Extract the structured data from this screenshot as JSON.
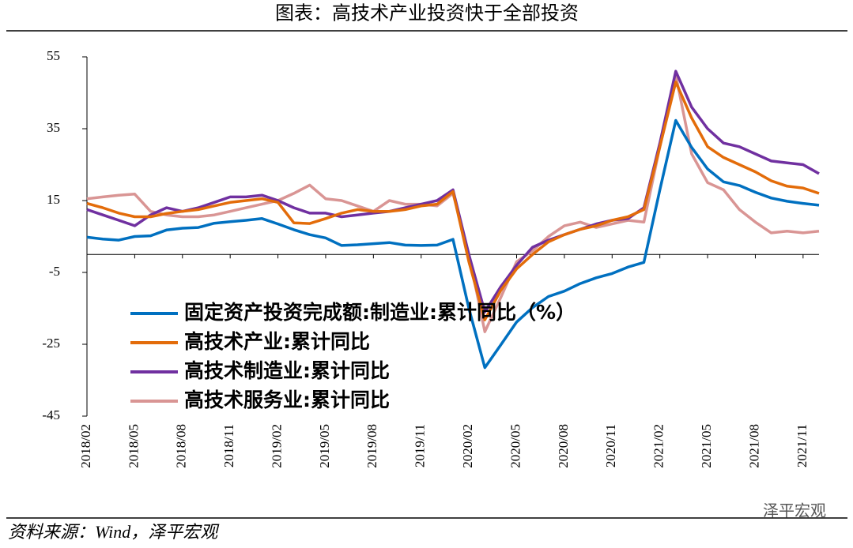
{
  "chart_data": {
    "type": "line",
    "title": "图表：高技术产业投资快于全部投资",
    "source": "资料来源：Wind，泽平宏观",
    "watermark": "泽平宏观",
    "categories": [
      "2018/02",
      null,
      null,
      "2018/05",
      null,
      null,
      "2018/08",
      null,
      null,
      "2018/11",
      null,
      null,
      "2019/02",
      null,
      null,
      "2019/05",
      null,
      null,
      "2019/08",
      null,
      null,
      "2019/11",
      null,
      null,
      "2020/02",
      null,
      null,
      "2020/05",
      null,
      null,
      "2020/08",
      null,
      null,
      "2020/11",
      null,
      null,
      "2021/02",
      null,
      null,
      "2021/05",
      null,
      null,
      "2021/08",
      null,
      null,
      "2021/11",
      null
    ],
    "ylim": [
      -45,
      55
    ],
    "yticks": [
      -45,
      -25,
      -5,
      15,
      35,
      55
    ],
    "series": [
      {
        "name": "固定资产投资完成额:制造业:累计同比（%）",
        "color": "#0070c0",
        "values": [
          4.8,
          4.3,
          4.0,
          5.0,
          5.2,
          6.8,
          7.3,
          7.5,
          8.7,
          9.1,
          9.5,
          10.0,
          8.5,
          6.9,
          5.5,
          4.6,
          2.5,
          2.7,
          3.0,
          3.3,
          2.6,
          2.5,
          2.6,
          4.2,
          -15,
          -31.5,
          -25.2,
          -18.8,
          -14.8,
          -11.7,
          -10.2,
          -8.1,
          -6.5,
          -5.3,
          -3.5,
          -2.2,
          18,
          37.3,
          29.8,
          23.8,
          20.2,
          19.2,
          17.3,
          15.7,
          14.8,
          14.2,
          13.7
        ]
      },
      {
        "name": "高技术产业:累计同比",
        "color": "#e36c0a",
        "values": [
          14.2,
          13,
          11.5,
          10.5,
          10.5,
          11.4,
          12,
          12.5,
          13.5,
          14.5,
          15,
          15.5,
          14.5,
          8.8,
          8.6,
          10,
          11.5,
          12.5,
          12,
          12,
          12.5,
          13.5,
          14.0,
          17.5,
          -2,
          -18.2,
          -10,
          -4,
          0,
          3.5,
          5.5,
          7,
          8,
          9.5,
          10.5,
          12.5,
          30,
          48,
          38,
          30,
          27,
          25,
          23,
          20.5,
          19,
          18.5,
          17
        ]
      },
      {
        "name": "高技术制造业:累计同比",
        "color": "#7030a0",
        "values": [
          12.5,
          11,
          9.5,
          8,
          11,
          13,
          12,
          13,
          14.5,
          16,
          16,
          16.5,
          15,
          13,
          11.5,
          11.5,
          10.5,
          11,
          11.5,
          12,
          13,
          14,
          15,
          18,
          0,
          -16,
          -9,
          -3,
          2,
          4,
          5.5,
          7,
          8.5,
          9.5,
          10,
          13,
          31,
          51,
          41,
          35,
          31,
          30,
          28,
          26,
          25.5,
          25,
          22.5
        ]
      },
      {
        "name": "高技术服务业:累计同比",
        "color": "#d99594",
        "values": [
          15.5,
          16,
          16.5,
          16.8,
          12,
          11,
          10.5,
          10.5,
          11,
          12,
          13,
          14,
          15,
          17,
          19.3,
          15.5,
          15,
          13.5,
          12,
          15,
          14,
          14,
          13.5,
          17,
          0,
          -21.5,
          -12,
          -2,
          1,
          5,
          8,
          9,
          7.5,
          8.5,
          9.5,
          9,
          30,
          50,
          28,
          20,
          18,
          12.5,
          9,
          6,
          6.5,
          6,
          6.5
        ]
      }
    ]
  }
}
